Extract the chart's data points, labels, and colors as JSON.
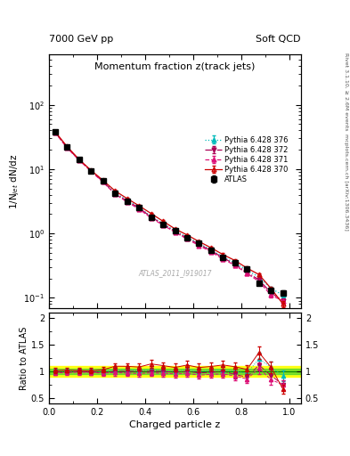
{
  "title_main": "Momentum fraction z(track jets)",
  "top_left_label": "7000 GeV pp",
  "top_right_label": "Soft QCD",
  "right_label_top": "Rivet 3.1.10, ≥ 2.6M events",
  "right_label_bot": "mcplots.cern.ch [arXiv:1306.3436]",
  "watermark": "ATLAS_2011_I919017",
  "ylabel_main": "1/N$_{jet}$ dN/dz",
  "ylabel_ratio": "Ratio to ATLAS",
  "xlabel": "Charged particle z",
  "ylim_main": [
    0.07,
    600
  ],
  "ylim_ratio": [
    0.4,
    2.1
  ],
  "xlim": [
    0.0,
    1.05
  ],
  "atlas_x": [
    0.025,
    0.075,
    0.125,
    0.175,
    0.225,
    0.275,
    0.325,
    0.375,
    0.425,
    0.475,
    0.525,
    0.575,
    0.625,
    0.675,
    0.725,
    0.775,
    0.825,
    0.875,
    0.925,
    0.975
  ],
  "atlas_y": [
    38.0,
    22.0,
    14.0,
    9.5,
    6.5,
    4.2,
    3.2,
    2.5,
    1.8,
    1.4,
    1.1,
    0.85,
    0.7,
    0.55,
    0.42,
    0.35,
    0.28,
    0.17,
    0.13,
    0.12
  ],
  "atlas_yerr": [
    1.5,
    0.9,
    0.6,
    0.4,
    0.3,
    0.2,
    0.15,
    0.12,
    0.09,
    0.07,
    0.06,
    0.05,
    0.04,
    0.03,
    0.025,
    0.02,
    0.018,
    0.012,
    0.01,
    0.01
  ],
  "py370_x": [
    0.025,
    0.075,
    0.125,
    0.175,
    0.225,
    0.275,
    0.325,
    0.375,
    0.425,
    0.475,
    0.525,
    0.575,
    0.625,
    0.675,
    0.725,
    0.775,
    0.825,
    0.875,
    0.925,
    0.975
  ],
  "py370_y": [
    38.5,
    22.5,
    14.2,
    9.6,
    6.7,
    4.6,
    3.5,
    2.7,
    2.05,
    1.55,
    1.18,
    0.95,
    0.75,
    0.6,
    0.47,
    0.38,
    0.29,
    0.23,
    0.14,
    0.08
  ],
  "py370_yerr": [
    0.8,
    0.5,
    0.35,
    0.25,
    0.18,
    0.12,
    0.1,
    0.08,
    0.07,
    0.05,
    0.04,
    0.035,
    0.03,
    0.025,
    0.022,
    0.018,
    0.015,
    0.012,
    0.01,
    0.008
  ],
  "py371_x": [
    0.025,
    0.075,
    0.125,
    0.175,
    0.225,
    0.275,
    0.325,
    0.375,
    0.425,
    0.475,
    0.525,
    0.575,
    0.625,
    0.675,
    0.725,
    0.775,
    0.825,
    0.875,
    0.925,
    0.975
  ],
  "py371_y": [
    37.0,
    21.5,
    13.8,
    9.3,
    6.3,
    4.1,
    3.1,
    2.4,
    1.75,
    1.35,
    1.05,
    0.82,
    0.65,
    0.52,
    0.4,
    0.32,
    0.24,
    0.18,
    0.11,
    0.09
  ],
  "py371_yerr": [
    0.8,
    0.5,
    0.35,
    0.25,
    0.18,
    0.12,
    0.1,
    0.08,
    0.07,
    0.05,
    0.04,
    0.035,
    0.03,
    0.025,
    0.022,
    0.018,
    0.015,
    0.012,
    0.01,
    0.008
  ],
  "py372_x": [
    0.025,
    0.075,
    0.125,
    0.175,
    0.225,
    0.275,
    0.325,
    0.375,
    0.425,
    0.475,
    0.525,
    0.575,
    0.625,
    0.675,
    0.725,
    0.775,
    0.825,
    0.875,
    0.925,
    0.975
  ],
  "py372_y": [
    37.5,
    21.8,
    14.0,
    9.4,
    6.4,
    4.2,
    3.2,
    2.5,
    1.8,
    1.4,
    1.08,
    0.85,
    0.68,
    0.54,
    0.42,
    0.33,
    0.25,
    0.19,
    0.12,
    0.09
  ],
  "py372_yerr": [
    0.8,
    0.5,
    0.35,
    0.25,
    0.18,
    0.12,
    0.1,
    0.08,
    0.07,
    0.05,
    0.04,
    0.035,
    0.03,
    0.025,
    0.022,
    0.018,
    0.015,
    0.012,
    0.01,
    0.008
  ],
  "py376_x": [
    0.025,
    0.075,
    0.125,
    0.175,
    0.225,
    0.275,
    0.325,
    0.375,
    0.425,
    0.475,
    0.525,
    0.575,
    0.625,
    0.675,
    0.725,
    0.775,
    0.825,
    0.875,
    0.925,
    0.975
  ],
  "py376_y": [
    38.0,
    22.0,
    14.0,
    9.5,
    6.5,
    4.3,
    3.3,
    2.55,
    1.85,
    1.42,
    1.1,
    0.88,
    0.7,
    0.56,
    0.43,
    0.35,
    0.27,
    0.21,
    0.14,
    0.11
  ],
  "py376_yerr": [
    0.8,
    0.5,
    0.35,
    0.25,
    0.18,
    0.12,
    0.1,
    0.08,
    0.07,
    0.05,
    0.04,
    0.035,
    0.03,
    0.025,
    0.022,
    0.018,
    0.015,
    0.012,
    0.01,
    0.008
  ],
  "color_atlas": "#000000",
  "color_370": "#cc0000",
  "color_371": "#dd1177",
  "color_372": "#aa0055",
  "color_376": "#00bbbb",
  "green_band_inner": 0.05,
  "green_band_outer": 0.1,
  "legend_entries": [
    "ATLAS",
    "Pythia 6.428 370",
    "Pythia 6.428 371",
    "Pythia 6.428 372",
    "Pythia 6.428 376"
  ]
}
